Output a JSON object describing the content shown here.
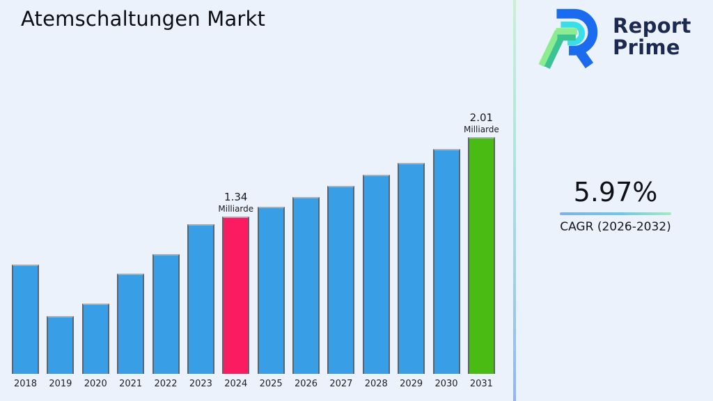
{
  "page": {
    "title": "Atemschaltungen Markt"
  },
  "logo": {
    "brand_line1": "Report",
    "brand_line2": "Prime"
  },
  "cagr": {
    "value": "5.97%",
    "label": "CAGR (2026-2032)"
  },
  "colors": {
    "background": "#ecf2fb",
    "bar_default": "#389fe6",
    "bar_highlight": "#fa1b61",
    "bar_forecast": "#49bb12",
    "divider_top": "#c6f3d0",
    "divider_bottom": "#8fb4f4",
    "logo_navy": "#1c2a52",
    "logo_blue": "#1b6bee",
    "logo_cyan": "#38dfe8",
    "logo_green": "#8deb90",
    "logo_teal": "#3cc394"
  },
  "chart_data": {
    "type": "bar",
    "title": "Atemschaltungen Markt",
    "xlabel": "",
    "ylabel": "",
    "unit": "Milliarde",
    "categories": [
      "2018",
      "2019",
      "2020",
      "2021",
      "2022",
      "2023",
      "2024",
      "2025",
      "2026",
      "2027",
      "2028",
      "2029",
      "2030",
      "2031"
    ],
    "values": [
      0.93,
      0.49,
      0.6,
      0.85,
      1.02,
      1.27,
      1.34,
      1.42,
      1.5,
      1.6,
      1.69,
      1.79,
      1.91,
      2.01
    ],
    "ylim": [
      0,
      2.35
    ],
    "grid": false,
    "legend": "none",
    "highlight_year": "2024",
    "forecast_year": "2031",
    "labeled_points": [
      {
        "year": "2024",
        "value_label": "1.34",
        "unit_label": "Milliarde"
      },
      {
        "year": "2031",
        "value_label": "2.01",
        "unit_label": "Milliarde"
      }
    ]
  }
}
